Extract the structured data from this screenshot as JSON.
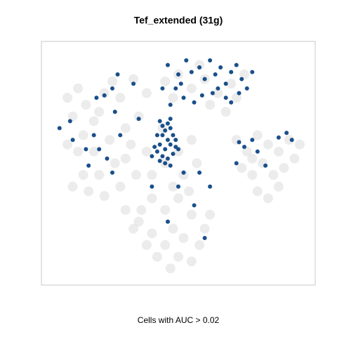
{
  "chart_data": {
    "type": "scatter",
    "title": "Tef_extended (31g)",
    "x_label": "Cells with AUC > 0.02",
    "xlim": [
      0,
      100
    ],
    "ylim": [
      0,
      100
    ],
    "series": [
      {
        "color": "#dcdcdc",
        "x": [
          8,
          12,
          15,
          10,
          18,
          22,
          25,
          28,
          20,
          14,
          8,
          12,
          18,
          24,
          30,
          35,
          32,
          26,
          20,
          14,
          10,
          16,
          22,
          28,
          34,
          30,
          38,
          33,
          30,
          35,
          40,
          45,
          50,
          55,
          42,
          38,
          33,
          48,
          52,
          58,
          60,
          55,
          45,
          40,
          50,
          36,
          62,
          47,
          40,
          45,
          50,
          52,
          48,
          38,
          55,
          44,
          54,
          57,
          72,
          76,
          80,
          84,
          88,
          92,
          96,
          74,
          78,
          82,
          86,
          90,
          80,
          84,
          88,
          78,
          94,
          45,
          50,
          55,
          60,
          65,
          70,
          75,
          62,
          68,
          72,
          58,
          48
        ],
        "values": [
          78,
          82,
          75,
          70,
          68,
          80,
          85,
          78,
          72,
          62,
          58,
          55,
          55,
          60,
          65,
          70,
          58,
          50,
          45,
          45,
          40,
          38,
          36,
          40,
          45,
          52,
          80,
          86,
          30,
          25,
          20,
          15,
          10,
          8,
          10,
          15,
          22,
          22,
          18,
          15,
          22,
          28,
          30,
          35,
          35,
          30,
          28,
          5,
          45,
          50,
          55,
          45,
          40,
          55,
          60,
          65,
          38,
          50,
          60,
          55,
          62,
          58,
          55,
          60,
          58,
          48,
          45,
          50,
          45,
          48,
          38,
          35,
          40,
          52,
          52,
          85,
          88,
          82,
          86,
          80,
          84,
          88,
          75,
          72,
          78,
          92,
          78
        ]
      },
      {
        "color": "#1a4f8b",
        "x": [
          46,
          50,
          53,
          55,
          58,
          60,
          62,
          64,
          66,
          68,
          70,
          72,
          74,
          76,
          73,
          78,
          68,
          65,
          49,
          52,
          56,
          51,
          63,
          59,
          70,
          44,
          47,
          5,
          9,
          19,
          22,
          25,
          27,
          26,
          33,
          35,
          10,
          15,
          20,
          23,
          25,
          16,
          28,
          18,
          43,
          44,
          45,
          46,
          47,
          44,
          46,
          48,
          43,
          45,
          47,
          49,
          42,
          44,
          46,
          48,
          41,
          45,
          47,
          43,
          49,
          47,
          42,
          50,
          40,
          73,
          75,
          78,
          88,
          91,
          93,
          72,
          83,
          80,
          50,
          46,
          58,
          62,
          56,
          60,
          40,
          52
        ],
        "values": [
          92,
          88,
          94,
          89,
          91,
          86,
          94,
          88,
          91,
          84,
          89,
          92,
          86,
          82,
          80,
          89,
          78,
          82,
          82,
          78,
          76,
          84,
          80,
          79,
          76,
          82,
          75,
          65,
          68,
          78,
          79,
          82,
          88,
          72,
          84,
          69,
          60,
          56,
          56,
          52,
          46,
          49,
          62,
          62,
          68,
          66,
          64,
          67,
          65,
          62,
          60,
          62,
          58,
          56,
          58,
          57,
          55,
          53,
          52,
          54,
          57,
          50,
          49,
          51,
          60,
          69,
          62,
          56,
          53,
          59,
          57,
          60,
          61,
          63,
          60,
          50,
          49,
          55,
          40,
          25,
          46,
          40,
          32,
          18,
          40,
          46
        ]
      }
    ]
  }
}
